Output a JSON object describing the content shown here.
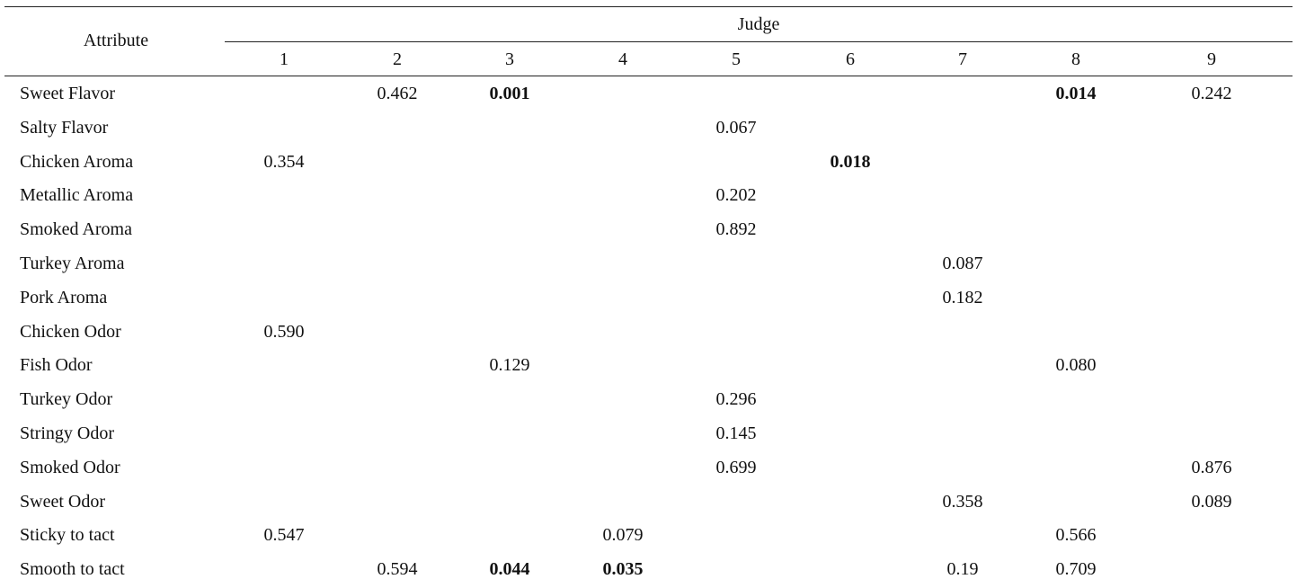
{
  "table": {
    "header": {
      "attribute": "Attribute",
      "group": "Judge",
      "judges": [
        "1",
        "2",
        "3",
        "4",
        "5",
        "6",
        "7",
        "8",
        "9"
      ]
    },
    "rows": [
      {
        "attribute": "Sweet Flavor",
        "values": [
          null,
          "0.462",
          {
            "text": "0.001",
            "bold": true
          },
          null,
          null,
          null,
          null,
          {
            "text": "0.014",
            "bold": true
          },
          "0.242"
        ]
      },
      {
        "attribute": "Salty Flavor",
        "values": [
          null,
          null,
          null,
          null,
          "0.067",
          null,
          null,
          null,
          null
        ]
      },
      {
        "attribute": "Chicken Aroma",
        "values": [
          "0.354",
          null,
          null,
          null,
          null,
          {
            "text": "0.018",
            "bold": true
          },
          null,
          null,
          null
        ]
      },
      {
        "attribute": "Metallic Aroma",
        "values": [
          null,
          null,
          null,
          null,
          "0.202",
          null,
          null,
          null,
          null
        ]
      },
      {
        "attribute": "Smoked Aroma",
        "values": [
          null,
          null,
          null,
          null,
          "0.892",
          null,
          null,
          null,
          null
        ]
      },
      {
        "attribute": "Turkey Aroma",
        "values": [
          null,
          null,
          null,
          null,
          null,
          null,
          "0.087",
          null,
          null
        ]
      },
      {
        "attribute": "Pork Aroma",
        "values": [
          null,
          null,
          null,
          null,
          null,
          null,
          "0.182",
          null,
          null
        ]
      },
      {
        "attribute": "Chicken Odor",
        "values": [
          "0.590",
          null,
          null,
          null,
          null,
          null,
          null,
          null,
          null
        ]
      },
      {
        "attribute": "Fish Odor",
        "values": [
          null,
          null,
          "0.129",
          null,
          null,
          null,
          null,
          "0.080",
          null
        ]
      },
      {
        "attribute": "Turkey Odor",
        "values": [
          null,
          null,
          null,
          null,
          "0.296",
          null,
          null,
          null,
          null
        ]
      },
      {
        "attribute": "Stringy Odor",
        "values": [
          null,
          null,
          null,
          null,
          "0.145",
          null,
          null,
          null,
          null
        ]
      },
      {
        "attribute": "Smoked Odor",
        "values": [
          null,
          null,
          null,
          null,
          "0.699",
          null,
          null,
          null,
          "0.876"
        ]
      },
      {
        "attribute": "Sweet Odor",
        "values": [
          null,
          null,
          null,
          null,
          null,
          null,
          "0.358",
          null,
          "0.089"
        ]
      },
      {
        "attribute": "Sticky to tact",
        "values": [
          "0.547",
          null,
          null,
          "0.079",
          null,
          null,
          null,
          "0.566",
          null
        ]
      },
      {
        "attribute": "Smooth to tact",
        "values": [
          null,
          "0.594",
          {
            "text": "0.044",
            "bold": true
          },
          {
            "text": "0.035",
            "bold": true
          },
          null,
          null,
          "0.19",
          "0.709",
          null
        ]
      }
    ]
  }
}
